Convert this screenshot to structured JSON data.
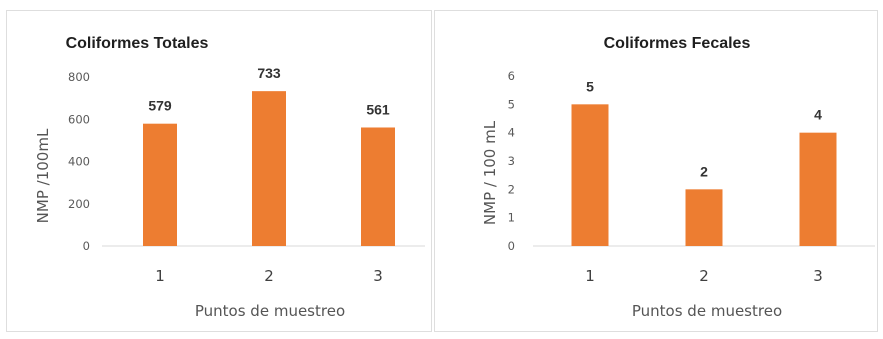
{
  "chart_data": [
    {
      "type": "bar",
      "title": "Coliformes Totales",
      "xlabel": "Puntos de muestreo",
      "ylabel": "NMP /100mL",
      "categories": [
        "1",
        "2",
        "3"
      ],
      "values": [
        579,
        733,
        561
      ],
      "data_labels": [
        "579",
        "733",
        "561"
      ],
      "ylim": [
        0,
        800
      ],
      "yticks": [
        "0",
        "200",
        "400",
        "600",
        "800"
      ],
      "grid": false,
      "legend": "none",
      "bar_color": "#ED7D31"
    },
    {
      "type": "bar",
      "title": "Coliformes Fecales",
      "xlabel": "Puntos de muestreo",
      "ylabel": "NMP / 100 mL",
      "categories": [
        "1",
        "2",
        "3"
      ],
      "values": [
        5,
        2,
        4
      ],
      "data_labels": [
        "5",
        "2",
        "4"
      ],
      "ylim": [
        0,
        6
      ],
      "yticks": [
        "0",
        "1",
        "2",
        "3",
        "4",
        "5",
        "6"
      ],
      "grid": false,
      "legend": "none",
      "bar_color": "#ED7D31"
    }
  ]
}
